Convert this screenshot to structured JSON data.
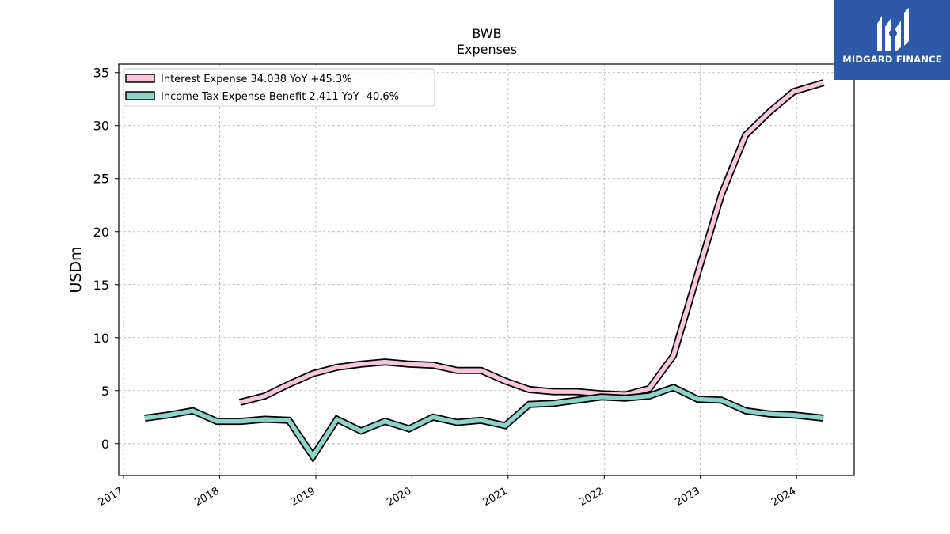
{
  "header": {
    "title": "BWB",
    "subtitle": "Expenses"
  },
  "logo": {
    "text": "MIDGARD FINANCE",
    "background_color": "#2c5aa8"
  },
  "chart_data": {
    "type": "line",
    "ylabel": "USDm",
    "xlabel": "",
    "xlim": [
      2016.95,
      2024.6
    ],
    "ylim": [
      -3,
      35.8
    ],
    "yticks": [
      0,
      5,
      10,
      15,
      20,
      25,
      30,
      35
    ],
    "xticks": [
      2017,
      2018,
      2019,
      2020,
      2021,
      2022,
      2023,
      2024
    ],
    "grid": true,
    "legend_position": "top-left",
    "series": [
      {
        "name": "Interest Expense  34.038 YoY +45.3%",
        "color": "#f9c8dd",
        "x": [
          2018.21,
          2018.47,
          2018.72,
          2018.97,
          2019.22,
          2019.47,
          2019.72,
          2019.97,
          2020.22,
          2020.47,
          2020.72,
          2020.97,
          2021.22,
          2021.47,
          2021.72,
          2021.97,
          2022.22,
          2022.47,
          2022.72,
          2022.97,
          2023.22,
          2023.47,
          2023.72,
          2023.97,
          2024.28
        ],
        "y": [
          3.9,
          4.5,
          5.6,
          6.6,
          7.2,
          7.5,
          7.7,
          7.5,
          7.4,
          6.9,
          6.9,
          5.9,
          5.1,
          4.9,
          4.9,
          4.7,
          4.6,
          5.2,
          8.3,
          16.0,
          23.5,
          29.1,
          31.3,
          33.2,
          34.038
        ]
      },
      {
        "name": "Income Tax Expense Benefit  2.411 YoY -40.6%",
        "color": "#8dd3c7",
        "x": [
          2017.22,
          2017.47,
          2017.72,
          2017.97,
          2018.22,
          2018.47,
          2018.72,
          2018.97,
          2019.22,
          2019.47,
          2019.72,
          2019.97,
          2020.22,
          2020.47,
          2020.72,
          2020.97,
          2021.22,
          2021.47,
          2021.72,
          2021.97,
          2022.22,
          2022.47,
          2022.72,
          2022.97,
          2023.22,
          2023.47,
          2023.72,
          2023.97,
          2024.28
        ],
        "y": [
          2.4,
          2.7,
          3.1,
          2.1,
          2.1,
          2.3,
          2.2,
          -1.2,
          2.3,
          1.2,
          2.1,
          1.4,
          2.5,
          2.0,
          2.2,
          1.7,
          3.7,
          3.8,
          4.1,
          4.4,
          4.3,
          4.5,
          5.3,
          4.2,
          4.1,
          3.1,
          2.8,
          2.7,
          2.411
        ]
      }
    ]
  }
}
